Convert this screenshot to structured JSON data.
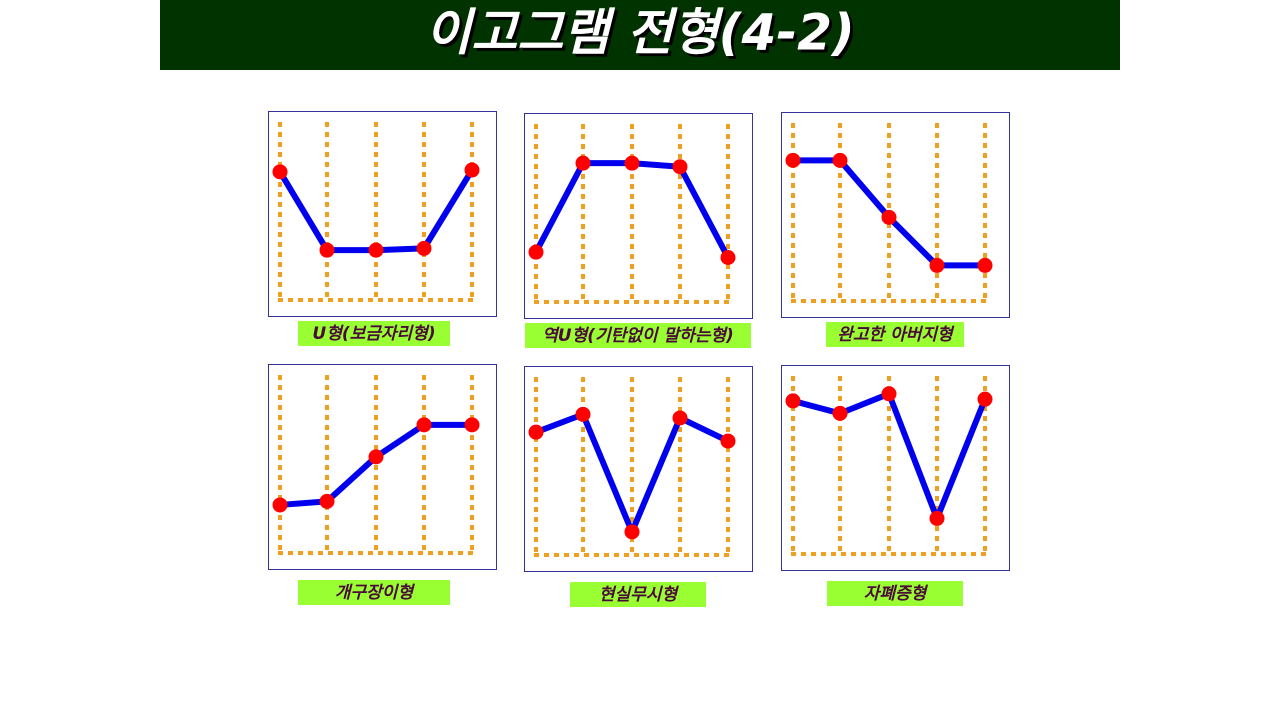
{
  "slide_title": "이고그램 전형(4-2)",
  "chart_data": [
    {
      "type": "line",
      "title": "U형(보금자리형)",
      "categories": [
        null,
        null,
        null,
        null,
        null
      ],
      "values": [
        72,
        28,
        28,
        29,
        73
      ],
      "ylim": [
        0,
        100
      ],
      "color": "#0000ee",
      "marker_color": "#ff0000"
    },
    {
      "type": "line",
      "title": "역U형(기탄없이 말하는형)",
      "categories": [
        null,
        null,
        null,
        null,
        null
      ],
      "values": [
        28,
        78,
        78,
        76,
        25
      ],
      "ylim": [
        0,
        100
      ],
      "color": "#0000ee",
      "marker_color": "#ff0000"
    },
    {
      "type": "line",
      "title": "완고한 아버지형",
      "categories": [
        null,
        null,
        null,
        null,
        null
      ],
      "values": [
        79,
        79,
        47,
        20,
        20
      ],
      "ylim": [
        0,
        100
      ],
      "color": "#0000ee",
      "marker_color": "#ff0000"
    },
    {
      "type": "line",
      "title": "개구장이형",
      "categories": [
        null,
        null,
        null,
        null,
        null
      ],
      "values": [
        27,
        29,
        54,
        72,
        72
      ],
      "ylim": [
        0,
        100
      ],
      "color": "#0000ee",
      "marker_color": "#ff0000"
    },
    {
      "type": "line",
      "title": "현실무시형",
      "categories": [
        null,
        null,
        null,
        null,
        null
      ],
      "values": [
        69,
        79,
        13,
        77,
        64
      ],
      "ylim": [
        0,
        100
      ],
      "color": "#0000ee",
      "marker_color": "#ff0000"
    },
    {
      "type": "line",
      "title": "자폐증형",
      "categories": [
        null,
        null,
        null,
        null,
        null
      ],
      "values": [
        86,
        79,
        90,
        20,
        87
      ],
      "ylim": [
        0,
        100
      ],
      "color": "#0000ee",
      "marker_color": "#ff0000"
    }
  ]
}
